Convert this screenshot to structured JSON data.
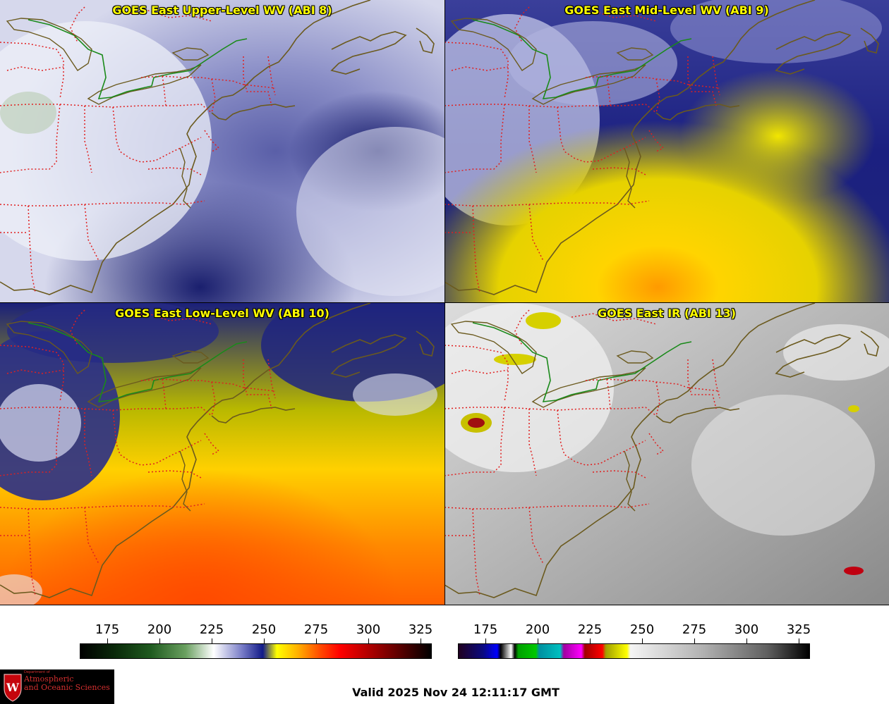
{
  "panels": {
    "upper": {
      "title": "GOES East Upper-Level WV (ABI 8)"
    },
    "mid": {
      "title": "GOES East Mid-Level WV (ABI 9)"
    },
    "low": {
      "title": "GOES East Low-Level WV (ABI 10)"
    },
    "ir": {
      "title": "GOES East IR (ABI 13)"
    }
  },
  "wv_scale": {
    "labels": [
      "175",
      "200",
      "225",
      "250",
      "275",
      "300",
      "325"
    ]
  },
  "ir_scale": {
    "labels": [
      "175",
      "200",
      "225",
      "250",
      "275",
      "300",
      "325"
    ]
  },
  "logo": {
    "small": "Department of",
    "line1": "Atmospheric",
    "line2": "and Oceanic Sciences"
  },
  "valid_time": "Valid 2025 Nov 24 12:11:17 GMT",
  "colors": {
    "title_text": "#ffff00",
    "state_borders": "#e02020",
    "coastline": "#6b5a1e",
    "international_border": "#1a8a1a"
  }
}
